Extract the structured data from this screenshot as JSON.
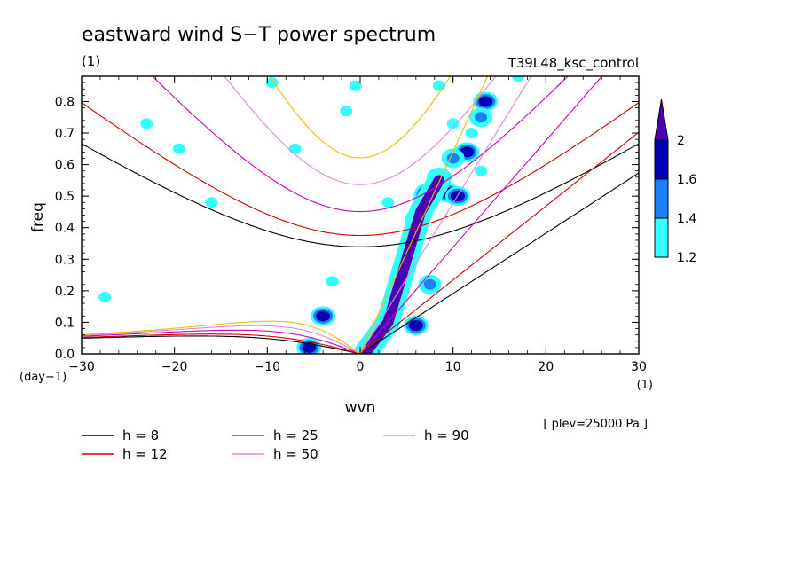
{
  "chart_data": {
    "type": "contour",
    "title": "eastward wind S−T power spectrum",
    "subtitle_left": "(1)",
    "subtitle_right": "T39L48_ksc_control",
    "xlabel": "wvn",
    "ylabel": "freq",
    "x_unit": "(1)",
    "y_unit": "(day−1)",
    "level_note": "[ plev=25000 Pa ]",
    "xlim": [
      -30,
      30
    ],
    "ylim": [
      0.0,
      0.88
    ],
    "x_ticks": [
      {
        "value": -30,
        "label": "−30"
      },
      {
        "value": -20,
        "label": "−20"
      },
      {
        "value": -10,
        "label": "−10"
      },
      {
        "value": 0,
        "label": "0"
      },
      {
        "value": 10,
        "label": "10"
      },
      {
        "value": 20,
        "label": "20"
      },
      {
        "value": 30,
        "label": "30"
      }
    ],
    "y_ticks": [
      {
        "value": 0.0,
        "label": "0.0"
      },
      {
        "value": 0.1,
        "label": "0.1"
      },
      {
        "value": 0.2,
        "label": "0.2"
      },
      {
        "value": 0.3,
        "label": "0.3"
      },
      {
        "value": 0.4,
        "label": "0.4"
      },
      {
        "value": 0.5,
        "label": "0.5"
      },
      {
        "value": 0.6,
        "label": "0.6"
      },
      {
        "value": 0.7,
        "label": "0.7"
      },
      {
        "value": 0.8,
        "label": "0.8"
      }
    ],
    "colorbar": {
      "levels": [
        1.2,
        1.4,
        1.6,
        2.0
      ],
      "labels": [
        "1.2",
        "1.4",
        "1.6",
        "2"
      ],
      "colors": [
        "#33ffff",
        "#1a80ff",
        "#0000b3",
        "#4d00b3"
      ]
    },
    "dispersion_curves": [
      {
        "name": "h = 8",
        "h": 8,
        "color": "#000000"
      },
      {
        "name": "h = 12",
        "h": 12,
        "color": "#cc0000"
      },
      {
        "name": "h = 25",
        "h": 25,
        "color": "#cc00bb"
      },
      {
        "name": "h = 50",
        "h": 50,
        "color": "#dd88dd"
      },
      {
        "name": "h = 90",
        "h": 90,
        "color": "#eebb00"
      }
    ],
    "contour_patches": [
      {
        "x": 7,
        "y": 0.5,
        "value": 2.0
      },
      {
        "x": 6,
        "y": 0.42,
        "value": 2.0
      },
      {
        "x": 4.5,
        "y": 0.25,
        "value": 2.0
      },
      {
        "x": 3,
        "y": 0.1,
        "value": 2.0
      },
      {
        "x": 8.5,
        "y": 0.56,
        "value": 1.6
      },
      {
        "x": 9.5,
        "y": 0.51,
        "value": 1.6
      },
      {
        "x": 10.5,
        "y": 0.5,
        "value": 1.6
      },
      {
        "x": 11.5,
        "y": 0.64,
        "value": 1.6
      },
      {
        "x": 13.5,
        "y": 0.8,
        "value": 1.6
      },
      {
        "x": 6,
        "y": 0.09,
        "value": 1.6
      },
      {
        "x": -5.5,
        "y": 0.02,
        "value": 1.6
      },
      {
        "x": -4,
        "y": 0.12,
        "value": 1.6
      },
      {
        "x": 7.5,
        "y": 0.22,
        "value": 1.4
      },
      {
        "x": 10,
        "y": 0.62,
        "value": 1.4
      },
      {
        "x": 13,
        "y": 0.75,
        "value": 1.4
      },
      {
        "x": 8.5,
        "y": 0.85,
        "value": 1.2
      },
      {
        "x": 10,
        "y": 0.73,
        "value": 1.2
      },
      {
        "x": 12,
        "y": 0.7,
        "value": 1.2
      },
      {
        "x": 17,
        "y": 0.88,
        "value": 1.2
      },
      {
        "x": -9.5,
        "y": 0.86,
        "value": 1.2
      },
      {
        "x": -7,
        "y": 0.65,
        "value": 1.2
      },
      {
        "x": -1.5,
        "y": 0.77,
        "value": 1.2
      },
      {
        "x": -0.5,
        "y": 0.85,
        "value": 1.2
      },
      {
        "x": -19.5,
        "y": 0.65,
        "value": 1.2
      },
      {
        "x": -23,
        "y": 0.73,
        "value": 1.2
      },
      {
        "x": -16,
        "y": 0.48,
        "value": 1.2
      },
      {
        "x": -3,
        "y": 0.23,
        "value": 1.2
      },
      {
        "x": 3,
        "y": 0.48,
        "value": 1.2
      },
      {
        "x": 13,
        "y": 0.58,
        "value": 1.2
      },
      {
        "x": -27.5,
        "y": 0.18,
        "value": 1.2
      }
    ]
  }
}
